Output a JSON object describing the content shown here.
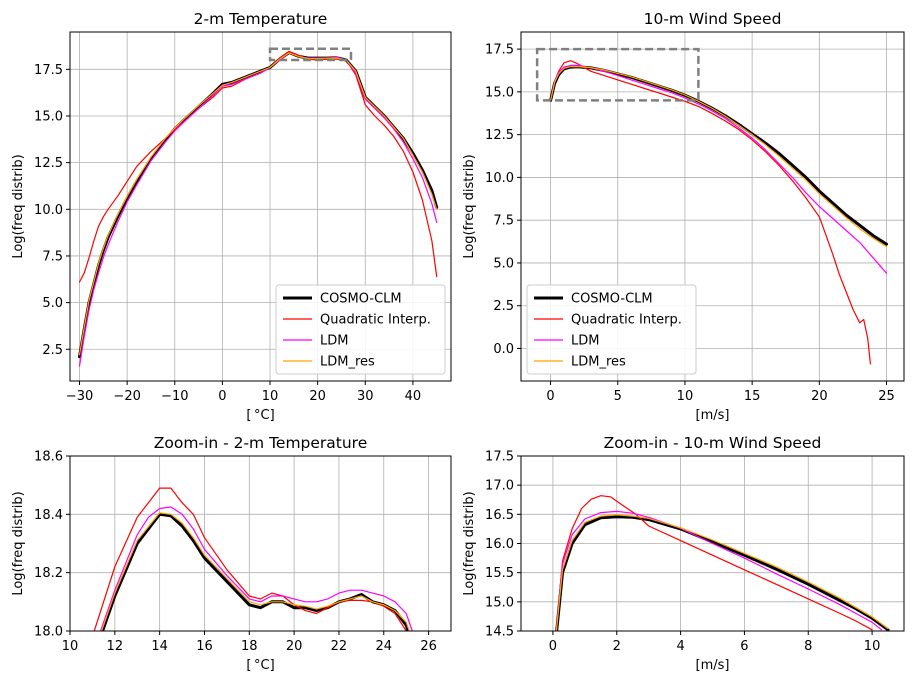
{
  "figure": {
    "series_styles": [
      {
        "name": "COSMO-CLM",
        "color": "#000000",
        "width": 3
      },
      {
        "name": "Quadratic Interp.",
        "color": "#ff0000",
        "width": 1.2
      },
      {
        "name": "LDM",
        "color": "#ff00ff",
        "width": 1.2
      },
      {
        "name": "LDM_res",
        "color": "#ffa500",
        "width": 1.2
      }
    ],
    "grid_color": "#b0b0b0",
    "highlight_box_color": "#808080"
  },
  "chart_data": [
    {
      "id": "temp_main",
      "type": "line",
      "title": "2-m Temperature",
      "xlabel": "[$^\\circ$C]",
      "ylabel": "Log(freq distrib)",
      "xlim": [
        -32,
        48
      ],
      "ylim": [
        0.8,
        19.5
      ],
      "xticks": [
        -30,
        -20,
        -10,
        0,
        10,
        20,
        30,
        40
      ],
      "yticks": [
        2.5,
        5.0,
        7.5,
        10.0,
        12.5,
        15.0,
        17.5
      ],
      "grid": true,
      "legend": "lower-right",
      "highlight_box": {
        "x": [
          10,
          27
        ],
        "y": [
          18.0,
          18.6
        ]
      },
      "x": [
        -30,
        -29,
        -28,
        -27,
        -26,
        -25,
        -24,
        -22,
        -20,
        -18,
        -15,
        -12,
        -10,
        -8,
        -5,
        -2,
        0,
        2,
        5,
        8,
        10,
        12,
        14,
        16,
        18,
        20,
        22,
        24,
        26,
        28,
        30,
        32,
        34,
        36,
        38,
        40,
        42,
        44,
        45
      ],
      "series": [
        {
          "name": "COSMO-CLM",
          "values": [
            2.1,
            3.6,
            5.0,
            6.0,
            7.0,
            7.8,
            8.5,
            9.6,
            10.6,
            11.5,
            12.7,
            13.7,
            14.3,
            14.8,
            15.5,
            16.2,
            16.7,
            16.8,
            17.1,
            17.4,
            17.6,
            18.05,
            18.4,
            18.2,
            18.1,
            18.1,
            18.1,
            18.12,
            18.0,
            17.4,
            16.0,
            15.5,
            15.0,
            14.4,
            13.8,
            13.0,
            12.1,
            11.0,
            10.1
          ]
        },
        {
          "name": "Quadratic Interp.",
          "values": [
            6.1,
            6.6,
            7.4,
            8.3,
            9.1,
            9.6,
            10.0,
            10.7,
            11.5,
            12.3,
            13.1,
            13.8,
            14.3,
            14.7,
            15.4,
            16.0,
            16.5,
            16.6,
            17.0,
            17.3,
            17.6,
            18.1,
            18.45,
            18.25,
            18.05,
            18.0,
            18.05,
            18.05,
            18.0,
            17.2,
            15.6,
            15.0,
            14.5,
            13.9,
            13.1,
            12.0,
            10.5,
            8.3,
            6.4
          ]
        },
        {
          "name": "LDM",
          "values": [
            1.6,
            3.2,
            4.6,
            5.7,
            6.6,
            7.4,
            8.1,
            9.3,
            10.4,
            11.3,
            12.6,
            13.6,
            14.2,
            14.7,
            15.4,
            16.1,
            16.6,
            16.7,
            17.0,
            17.3,
            17.6,
            18.0,
            18.38,
            18.2,
            18.1,
            18.1,
            18.1,
            18.15,
            18.0,
            17.3,
            15.9,
            15.4,
            14.9,
            14.3,
            13.6,
            12.7,
            11.7,
            10.3,
            9.3
          ]
        },
        {
          "name": "LDM_res",
          "values": [
            2.2,
            3.7,
            5.1,
            6.1,
            7.1,
            7.9,
            8.6,
            9.7,
            10.7,
            11.6,
            12.8,
            13.8,
            14.35,
            14.85,
            15.55,
            16.2,
            16.65,
            16.8,
            17.1,
            17.4,
            17.6,
            18.05,
            18.38,
            18.18,
            18.08,
            18.08,
            18.1,
            18.1,
            18.0,
            17.4,
            16.0,
            15.5,
            15.0,
            14.4,
            13.8,
            12.9,
            12.0,
            10.8,
            10.0
          ]
        }
      ]
    },
    {
      "id": "wind_main",
      "type": "line",
      "title": "10-m Wind Speed",
      "xlabel": "[m/s]",
      "ylabel": "Log(freq distrib)",
      "xlim": [
        -2.2,
        26.3
      ],
      "ylim": [
        -1.9,
        18.5
      ],
      "xticks": [
        0,
        5,
        10,
        15,
        20,
        25
      ],
      "yticks": [
        0.0,
        2.5,
        5.0,
        7.5,
        10.0,
        12.5,
        15.0,
        17.5
      ],
      "grid": true,
      "legend": "lower-left",
      "highlight_box": {
        "x": [
          -1,
          11
        ],
        "y": [
          14.5,
          17.5
        ]
      },
      "series": [
        {
          "name": "COSMO-CLM",
          "x": [
            0,
            0.3,
            0.6,
            1,
            1.5,
            2,
            3,
            4,
            5,
            6,
            7,
            8,
            9,
            10,
            11,
            12,
            13,
            14,
            15,
            16,
            17,
            18,
            19,
            20,
            21,
            22,
            23,
            24,
            25
          ],
          "values": [
            14.5,
            15.5,
            16.0,
            16.35,
            16.45,
            16.47,
            16.4,
            16.25,
            16.05,
            15.85,
            15.6,
            15.35,
            15.1,
            14.8,
            14.45,
            14.05,
            13.6,
            13.1,
            12.55,
            12.0,
            11.4,
            10.7,
            10.0,
            9.2,
            8.5,
            7.8,
            7.2,
            6.6,
            6.1
          ]
        },
        {
          "name": "Quadratic Interp.",
          "x": [
            0,
            0.3,
            0.6,
            1,
            1.5,
            2,
            3,
            4,
            5,
            6,
            7,
            8,
            9,
            10,
            11,
            12,
            13,
            14,
            15,
            16,
            17,
            18,
            19,
            20,
            20.5,
            21,
            21.5,
            22,
            22.5,
            23,
            23.3,
            23.6,
            23.8
          ],
          "values": [
            14.5,
            15.6,
            16.2,
            16.7,
            16.82,
            16.65,
            16.2,
            15.95,
            15.7,
            15.45,
            15.2,
            14.95,
            14.7,
            14.45,
            14.15,
            13.75,
            13.3,
            12.8,
            12.2,
            11.5,
            10.7,
            9.8,
            8.8,
            7.7,
            6.6,
            5.5,
            4.3,
            3.3,
            2.3,
            1.5,
            1.7,
            0.6,
            -0.9
          ]
        },
        {
          "name": "LDM",
          "x": [
            0,
            0.3,
            0.6,
            1,
            1.5,
            2,
            3,
            4,
            5,
            6,
            7,
            8,
            9,
            10,
            11,
            12,
            13,
            14,
            15,
            16,
            17,
            18,
            19,
            20,
            21,
            22,
            23,
            24,
            25
          ],
          "values": [
            14.5,
            15.6,
            16.15,
            16.45,
            16.55,
            16.55,
            16.4,
            16.2,
            15.95,
            15.7,
            15.45,
            15.2,
            14.95,
            14.65,
            14.3,
            13.9,
            13.45,
            12.9,
            12.3,
            11.6,
            10.8,
            10.0,
            9.1,
            8.3,
            7.6,
            6.9,
            6.2,
            5.3,
            4.4
          ]
        },
        {
          "name": "LDM_res",
          "x": [
            0,
            0.3,
            0.6,
            1,
            1.5,
            2,
            3,
            4,
            5,
            6,
            7,
            8,
            9,
            10,
            11,
            12,
            13,
            14,
            15,
            16,
            17,
            18,
            19,
            20,
            21,
            22,
            23,
            24,
            25
          ],
          "values": [
            14.5,
            15.55,
            16.05,
            16.38,
            16.48,
            16.48,
            16.42,
            16.28,
            16.08,
            15.88,
            15.63,
            15.38,
            15.12,
            14.82,
            14.45,
            14.05,
            13.58,
            13.05,
            12.5,
            11.9,
            11.25,
            10.55,
            9.85,
            9.05,
            8.35,
            7.65,
            7.0,
            6.45,
            5.95
          ]
        }
      ]
    },
    {
      "id": "temp_zoom",
      "type": "line",
      "title": "Zoom-in - 2-m Temperature",
      "xlabel": "[$^\\circ$C]",
      "ylabel": "Log(freq distrib)",
      "xlim": [
        10,
        27
      ],
      "ylim": [
        18.0,
        18.6
      ],
      "xticks": [
        10,
        12,
        14,
        16,
        18,
        20,
        22,
        24,
        26
      ],
      "yticks": [
        18.0,
        18.2,
        18.4,
        18.6
      ],
      "grid": true,
      "legend": "none",
      "series": [
        {
          "name": "COSMO-CLM",
          "x": [
            11,
            12,
            13,
            14,
            14.5,
            15,
            15.5,
            16,
            17,
            18,
            18.5,
            19,
            19.5,
            20,
            20.5,
            21,
            21.5,
            22,
            22.5,
            23,
            23.5,
            24,
            24.5,
            25,
            25.5
          ],
          "values": [
            17.9,
            18.12,
            18.3,
            18.4,
            18.395,
            18.36,
            18.31,
            18.25,
            18.17,
            18.09,
            18.08,
            18.1,
            18.1,
            18.08,
            18.08,
            18.07,
            18.08,
            18.1,
            18.11,
            18.125,
            18.1,
            18.09,
            18.07,
            18.02,
            17.9
          ]
        },
        {
          "name": "Quadratic Interp.",
          "x": [
            11,
            12,
            13,
            13.5,
            14,
            14.5,
            15,
            15.5,
            16,
            17,
            18,
            18.5,
            19,
            19.5,
            20,
            20.5,
            21,
            21.5,
            22,
            22.5,
            23,
            23.5,
            24,
            24.5,
            25,
            25.5
          ],
          "values": [
            17.98,
            18.22,
            18.39,
            18.44,
            18.49,
            18.49,
            18.44,
            18.4,
            18.32,
            18.21,
            18.12,
            18.11,
            18.13,
            18.12,
            18.09,
            18.07,
            18.06,
            18.08,
            18.1,
            18.105,
            18.105,
            18.1,
            18.085,
            18.06,
            18.0,
            17.9
          ]
        },
        {
          "name": "LDM",
          "x": [
            11,
            12,
            13,
            13.5,
            14,
            14.5,
            15,
            15.5,
            16,
            17,
            18,
            18.5,
            19,
            19.5,
            20,
            20.5,
            21,
            21.5,
            22,
            22.5,
            23,
            23.5,
            24,
            24.5,
            25,
            25.5
          ],
          "values": [
            17.92,
            18.14,
            18.33,
            18.39,
            18.42,
            18.425,
            18.4,
            18.35,
            18.28,
            18.19,
            18.11,
            18.1,
            18.12,
            18.12,
            18.11,
            18.1,
            18.1,
            18.11,
            18.13,
            18.14,
            18.14,
            18.13,
            18.12,
            18.1,
            18.06,
            17.95
          ]
        },
        {
          "name": "LDM_res",
          "x": [
            11,
            12,
            13,
            14,
            14.5,
            15,
            15.5,
            16,
            17,
            18,
            18.5,
            19,
            19.5,
            20,
            20.5,
            21,
            21.5,
            22,
            22.5,
            23,
            23.5,
            24,
            24.5,
            25,
            25.5
          ],
          "values": [
            17.91,
            18.13,
            18.31,
            18.405,
            18.4,
            18.37,
            18.32,
            18.26,
            18.18,
            18.1,
            18.09,
            18.1,
            18.1,
            18.09,
            18.085,
            18.075,
            18.085,
            18.1,
            18.11,
            18.12,
            18.1,
            18.09,
            18.07,
            18.03,
            17.92
          ]
        }
      ]
    },
    {
      "id": "wind_zoom",
      "type": "line",
      "title": "Zoom-in - 10-m Wind Speed",
      "xlabel": "[m/s]",
      "ylabel": "Log(freq distrib)",
      "xlim": [
        -1,
        11
      ],
      "ylim": [
        14.5,
        17.5
      ],
      "xticks": [
        0,
        2,
        4,
        6,
        8,
        10
      ],
      "yticks": [
        14.5,
        15.0,
        15.5,
        16.0,
        16.5,
        17.0,
        17.5
      ],
      "grid": true,
      "legend": "none",
      "series": [
        {
          "name": "COSMO-CLM",
          "x": [
            0.1,
            0.3,
            0.6,
            1,
            1.5,
            2,
            2.5,
            3,
            4,
            5,
            6,
            7,
            8,
            9,
            9.5,
            10,
            10.5
          ],
          "values": [
            14.4,
            15.5,
            16.0,
            16.32,
            16.44,
            16.46,
            16.45,
            16.41,
            16.25,
            16.03,
            15.8,
            15.56,
            15.3,
            15.02,
            14.88,
            14.72,
            14.52
          ]
        },
        {
          "name": "Quadratic Interp.",
          "x": [
            0.1,
            0.3,
            0.6,
            0.9,
            1.2,
            1.5,
            1.8,
            2.2,
            2.6,
            3,
            4,
            5,
            6,
            7,
            8,
            9,
            9.5,
            10
          ],
          "values": [
            14.45,
            15.7,
            16.25,
            16.6,
            16.76,
            16.82,
            16.8,
            16.65,
            16.5,
            16.3,
            16.05,
            15.8,
            15.55,
            15.3,
            15.05,
            14.8,
            14.67,
            14.52
          ]
        },
        {
          "name": "LDM",
          "x": [
            0.1,
            0.3,
            0.6,
            1,
            1.5,
            2,
            2.5,
            3,
            4,
            5,
            6,
            7,
            8,
            9,
            9.5,
            10,
            10.3
          ],
          "values": [
            14.45,
            15.65,
            16.15,
            16.42,
            16.53,
            16.55,
            16.52,
            16.45,
            16.26,
            16.0,
            15.75,
            15.48,
            15.22,
            14.95,
            14.8,
            14.65,
            14.52
          ]
        },
        {
          "name": "LDM_res",
          "x": [
            0.1,
            0.3,
            0.6,
            1,
            1.5,
            2,
            2.5,
            3,
            4,
            5,
            6,
            7,
            8,
            9,
            9.5,
            10,
            10.5
          ],
          "values": [
            14.45,
            15.55,
            16.05,
            16.36,
            16.47,
            16.49,
            16.47,
            16.43,
            16.27,
            16.06,
            15.83,
            15.6,
            15.34,
            15.06,
            14.9,
            14.74,
            14.54
          ]
        }
      ]
    }
  ]
}
